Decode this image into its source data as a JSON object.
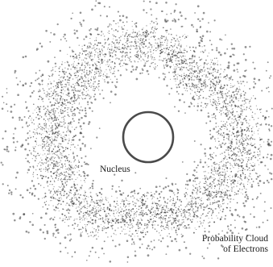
{
  "diagram": {
    "nucleus_label": "Nucleus",
    "cloud_label_line1": "Probability Cloud",
    "cloud_label_line2": "of Electrons",
    "colors": {
      "background": "#ffffff",
      "dots": "#3a3a3a",
      "nucleus_outline": "#4a4a4a",
      "text": "#1a1a1a"
    }
  }
}
